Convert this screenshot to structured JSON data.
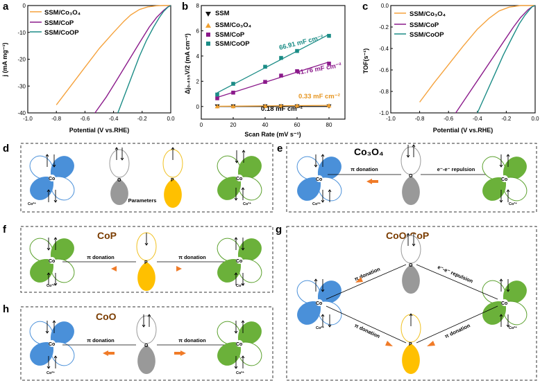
{
  "chart_data": [
    {
      "panel": "a",
      "type": "line",
      "xlabel": "Potential (V vs.RHE)",
      "ylabel": "j (mA mg⁻¹)",
      "xlim": [
        -1.0,
        0.0
      ],
      "ylim": [
        -40,
        0
      ],
      "xticks": [
        "-1.0",
        "-0.8",
        "-0.6",
        "-0.4",
        "-0.2",
        "0.0"
      ],
      "yticks": [
        "0",
        "-10",
        "-20",
        "-30",
        "-40"
      ],
      "series": [
        {
          "name": "SSM/Co₃O₄",
          "color": "#f5a23c",
          "x": [
            -0.8,
            -0.7,
            -0.6,
            -0.5,
            -0.4,
            -0.33,
            -0.28,
            -0.22,
            -0.16,
            -0.1,
            -0.05,
            0.0
          ],
          "y": [
            -37,
            -30,
            -23,
            -16,
            -10,
            -6,
            -3.5,
            -1.5,
            -0.5,
            -0.1,
            0,
            0
          ]
        },
        {
          "name": "SSM/CoP",
          "color": "#8b1a8b",
          "x": [
            -0.53,
            -0.45,
            -0.38,
            -0.3,
            -0.22,
            -0.15,
            -0.1,
            -0.05,
            -0.02,
            0.0
          ],
          "y": [
            -40,
            -34,
            -28,
            -21,
            -14,
            -8,
            -4.5,
            -1.8,
            -0.5,
            0
          ]
        },
        {
          "name": "SSM/CoOP",
          "color": "#1b8c86",
          "x": [
            -0.37,
            -0.32,
            -0.27,
            -0.22,
            -0.17,
            -0.12,
            -0.08,
            -0.05,
            -0.02,
            0.0
          ],
          "y": [
            -40,
            -33,
            -26,
            -19,
            -13,
            -8,
            -4.5,
            -2.2,
            -0.6,
            0
          ]
        }
      ]
    },
    {
      "panel": "b",
      "type": "scatter",
      "xlabel": "Scan Rate (mV s⁻¹)",
      "ylabel": "Δj₀.₄₅₅V/2 (mA cm⁻²)",
      "xlim": [
        0,
        90
      ],
      "ylim": [
        -1,
        8
      ],
      "xticks": [
        "0",
        "20",
        "40",
        "60",
        "80"
      ],
      "yticks": [
        "0",
        "2",
        "4",
        "6",
        "8"
      ],
      "series": [
        {
          "name": "SSM",
          "color": "#111111",
          "marker": "triangle-down",
          "x": [
            10,
            20,
            40,
            50,
            60,
            80
          ],
          "y": [
            0.0,
            0.0,
            0.0,
            0.0,
            0.0,
            0.0
          ]
        },
        {
          "name": "SSM/Co₃O₄",
          "color": "#f0a030",
          "marker": "triangle-up",
          "x": [
            10,
            20,
            40,
            50,
            60,
            80
          ],
          "y": [
            0.02,
            0.03,
            0.05,
            0.06,
            0.07,
            0.09
          ]
        },
        {
          "name": "SSM/CoP",
          "color": "#8b1a8b",
          "marker": "square",
          "x": [
            10,
            20,
            40,
            50,
            60,
            80
          ],
          "y": [
            0.65,
            1.1,
            1.95,
            2.45,
            2.8,
            3.4
          ]
        },
        {
          "name": "SSM/CoOP",
          "color": "#1b8c86",
          "marker": "square",
          "x": [
            10,
            20,
            40,
            50,
            60,
            80
          ],
          "y": [
            0.95,
            1.8,
            3.15,
            3.85,
            4.4,
            5.6
          ]
        }
      ],
      "annotations": [
        "66.91 mF cm⁻²",
        "41.76 mF cm⁻²",
        "0.33 mF cm⁻²",
        "0.18 mF cm⁻²"
      ]
    },
    {
      "panel": "c",
      "type": "line",
      "xlabel": "Potential (V vs.RHE)",
      "ylabel": "TOF(s⁻¹)",
      "xlim": [
        -1.0,
        0.0
      ],
      "ylim": [
        -1.0,
        0.0
      ],
      "xticks": [
        "-1.0",
        "-0.8",
        "-0.6",
        "-0.4",
        "-0.2",
        "0.0"
      ],
      "yticks": [
        "0.0",
        "-0.2",
        "-0.4",
        "-0.6",
        "-0.8",
        "-1.0"
      ],
      "series": [
        {
          "name": "SSM/Co₃O₄",
          "color": "#f5a23c",
          "x": [
            -0.8,
            -0.7,
            -0.6,
            -0.5,
            -0.4,
            -0.32,
            -0.25,
            -0.18,
            -0.1,
            -0.05,
            0.0
          ],
          "y": [
            -0.9,
            -0.72,
            -0.55,
            -0.38,
            -0.22,
            -0.12,
            -0.05,
            -0.015,
            0,
            0,
            0
          ]
        },
        {
          "name": "SSM/CoP",
          "color": "#8b1a8b",
          "x": [
            -0.55,
            -0.46,
            -0.38,
            -0.3,
            -0.22,
            -0.15,
            -0.1,
            -0.05,
            -0.02,
            0.0
          ],
          "y": [
            -1.0,
            -0.82,
            -0.66,
            -0.5,
            -0.34,
            -0.2,
            -0.11,
            -0.04,
            -0.01,
            0
          ]
        },
        {
          "name": "SSM/CoOP",
          "color": "#1b8c86",
          "x": [
            -0.4,
            -0.34,
            -0.28,
            -0.22,
            -0.16,
            -0.11,
            -0.07,
            -0.04,
            -0.02,
            0.0
          ],
          "y": [
            -1.0,
            -0.82,
            -0.64,
            -0.46,
            -0.3,
            -0.17,
            -0.09,
            -0.04,
            -0.01,
            0
          ]
        }
      ]
    }
  ],
  "panel_labels": [
    "a",
    "b",
    "c",
    "d",
    "e",
    "f",
    "g",
    "h"
  ],
  "schemes": {
    "d": {
      "co_left": "Co",
      "co_left_sub": "Co²⁺",
      "o": "O",
      "p": "P",
      "parameters": "Parameters",
      "co_right": "Co",
      "co_right_sub": "Co³⁺"
    },
    "e": {
      "title": "Co₃O₄",
      "co_left": "Co",
      "co_left_sub": "Co²⁺",
      "o": "O",
      "co_right": "Co",
      "co_right_sub": "Co³⁺",
      "pi": "π donation",
      "repulsion": "e⁻-e⁻ repulsion"
    },
    "f": {
      "title": "CoP",
      "co_left": "Co",
      "co_left_sub": "Co³⁺",
      "p": "P",
      "co_right": "Co",
      "co_right_sub": "Co³⁺",
      "pi_left": "π donation",
      "pi_right": "π donation"
    },
    "g": {
      "title": "CoO-CoP",
      "co_left": "Co",
      "co_left_sub": "Co²⁺",
      "o": "O",
      "p": "P",
      "co_right": "Co",
      "co_right_sub": "Co²⁺",
      "pi_ul": "π donation",
      "repulsion": "e⁻-e⁻ repulsion",
      "pi_ll": "π donation",
      "pi_lr": "π donation"
    },
    "h": {
      "title": "CoO",
      "co_left": "Co",
      "co_left_sub": "Co²⁺",
      "o": "O",
      "co_right": "Co",
      "co_right_sub": "Co²⁺",
      "pi_left": "π donation",
      "pi_right": "π donation"
    }
  }
}
